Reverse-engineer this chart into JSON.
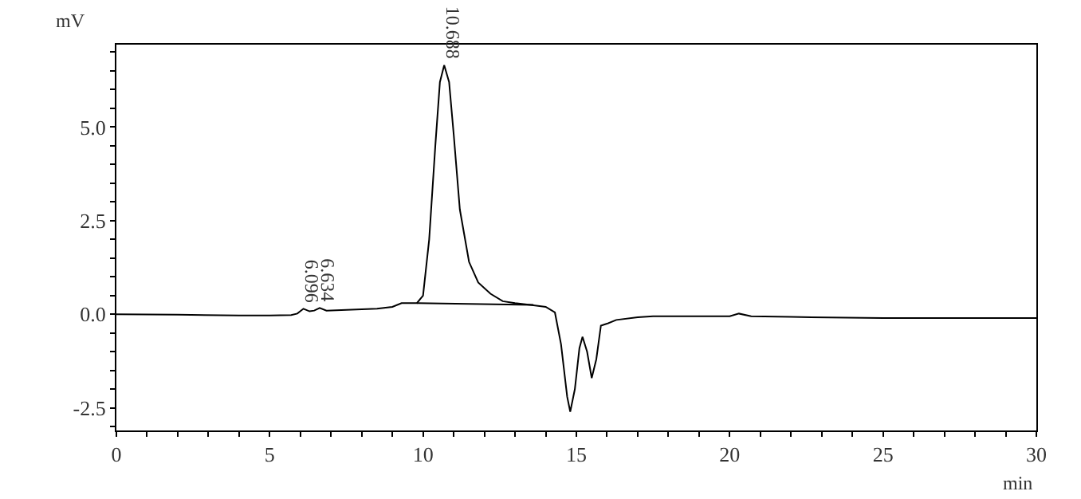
{
  "chart_data": {
    "type": "line",
    "xlabel": "min",
    "ylabel": "mV",
    "x": [
      0,
      2,
      4,
      5,
      5.7,
      5.9,
      6.1,
      6.3,
      6.45,
      6.63,
      6.85,
      7.5,
      8.5,
      9.0,
      9.3,
      9.8,
      10.0,
      10.2,
      10.4,
      10.55,
      10.69,
      10.85,
      11.0,
      11.2,
      11.5,
      11.8,
      12.2,
      12.6,
      13.0,
      13.5,
      14.0,
      14.3,
      14.5,
      14.7,
      14.8,
      14.95,
      15.1,
      15.2,
      15.35,
      15.5,
      15.65,
      15.8,
      16.0,
      16.3,
      17,
      17.5,
      18,
      20,
      20.3,
      20.7,
      22,
      25,
      30
    ],
    "series": [
      {
        "color": "#000000",
        "values": [
          0,
          -0.01,
          -0.03,
          -0.03,
          -0.02,
          0.02,
          0.15,
          0.08,
          0.1,
          0.17,
          0.1,
          0.12,
          0.15,
          0.2,
          0.3,
          0.3,
          0.5,
          2.0,
          4.5,
          6.2,
          6.65,
          6.2,
          4.8,
          2.8,
          1.4,
          0.85,
          0.55,
          0.35,
          0.3,
          0.25,
          0.2,
          0.05,
          -0.8,
          -2.2,
          -2.6,
          -2.0,
          -0.9,
          -0.6,
          -1.0,
          -1.7,
          -1.2,
          -0.3,
          -0.25,
          -0.15,
          -0.08,
          -0.05,
          -0.05,
          -0.05,
          0.02,
          -0.05,
          -0.07,
          -0.1,
          -0.1
        ]
      },
      {
        "color": "#000000",
        "x": [
          9.8,
          13.6
        ],
        "values": [
          0.3,
          0.25
        ]
      }
    ],
    "annotations": [
      {
        "text": "6.096",
        "x": 6.096,
        "y": 0.15
      },
      {
        "text": "6.634",
        "x": 6.634,
        "y": 0.17
      },
      {
        "text": "10.688",
        "x": 10.688,
        "y": 6.65
      }
    ],
    "xlim": [
      0,
      30
    ],
    "ylim": [
      -3.1,
      7.2
    ],
    "xticks": [
      0,
      {
        "value": 1,
        "label": null
      },
      {
        "value": 2,
        "label": null
      },
      {
        "value": 3,
        "label": null
      },
      {
        "value": 4,
        "label": null
      },
      5,
      {
        "value": 6,
        "label": null
      },
      {
        "value": 7,
        "label": null
      },
      {
        "value": 8,
        "label": null
      },
      {
        "value": 9,
        "label": null
      },
      10,
      {
        "value": 11,
        "label": null
      },
      {
        "value": 12,
        "label": null
      },
      {
        "value": 13,
        "label": null
      },
      {
        "value": 14,
        "label": null
      },
      15,
      {
        "value": 16,
        "label": null
      },
      {
        "value": 17,
        "label": null
      },
      {
        "value": 18,
        "label": null
      },
      {
        "value": 19,
        "label": null
      },
      20,
      {
        "value": 21,
        "label": null
      },
      {
        "value": 22,
        "label": null
      },
      {
        "value": 23,
        "label": null
      },
      {
        "value": 24,
        "label": null
      },
      25,
      {
        "value": 26,
        "label": null
      },
      {
        "value": 27,
        "label": null
      },
      {
        "value": 28,
        "label": null
      },
      {
        "value": 29,
        "label": null
      },
      30
    ],
    "yticks": [
      {
        "value": -3.0,
        "label": null
      },
      {
        "value": -2.5,
        "label": "-2.5"
      },
      {
        "value": -2.0,
        "label": null
      },
      {
        "value": -1.5,
        "label": null
      },
      {
        "value": -1.0,
        "label": null
      },
      {
        "value": -0.5,
        "label": null
      },
      {
        "value": 0,
        "label": "0.0"
      },
      {
        "value": 0.5,
        "label": null
      },
      {
        "value": 1.0,
        "label": null
      },
      {
        "value": 1.5,
        "label": null
      },
      {
        "value": 2.0,
        "label": null
      },
      {
        "value": 2.5,
        "label": "2.5"
      },
      {
        "value": 3.0,
        "label": null
      },
      {
        "value": 3.5,
        "label": null
      },
      {
        "value": 4.0,
        "label": null
      },
      {
        "value": 4.5,
        "label": null
      },
      {
        "value": 5.0,
        "label": "5.0"
      },
      {
        "value": 5.5,
        "label": null
      },
      {
        "value": 6.0,
        "label": null
      },
      {
        "value": 6.5,
        "label": null
      },
      {
        "value": 7.0,
        "label": null
      }
    ],
    "marker": "none",
    "line_style": "solid"
  }
}
